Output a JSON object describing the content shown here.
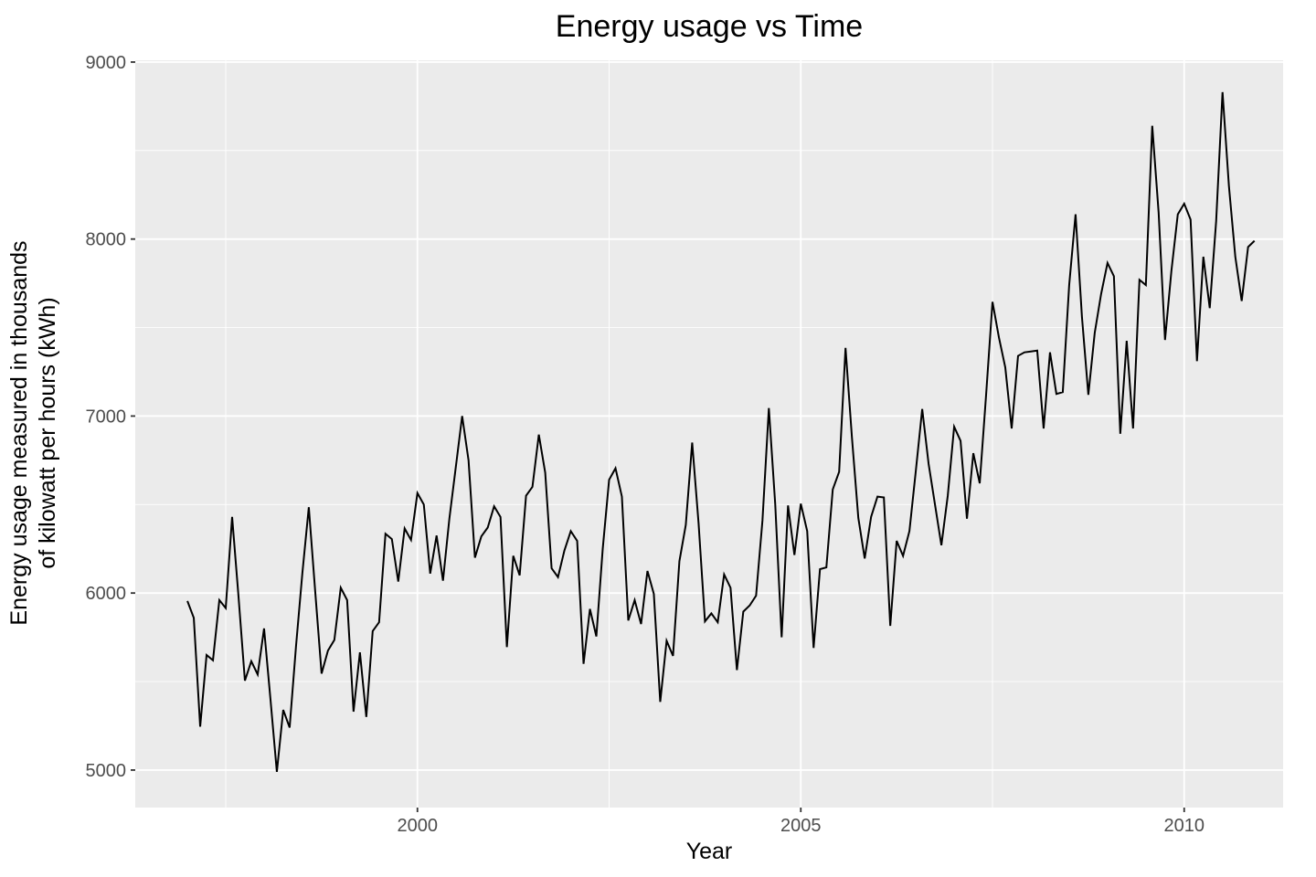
{
  "chart_data": {
    "type": "line",
    "title": "Energy usage vs Time",
    "xlabel": "Year",
    "ylabel_line1": "Energy usage measured in thousands",
    "ylabel_line2": "of kilowatt per hours (kWh)",
    "series_name": "energy-usage-monthly",
    "x_start_year": 1997,
    "x_step": "month",
    "x_ticks": [
      2000,
      2005,
      2010
    ],
    "x_tick_labels": [
      "2000",
      "2005",
      "2010"
    ],
    "x_minor_ticks": [
      1997.5,
      2002.5,
      2007.5
    ],
    "y_ticks": [
      5000,
      6000,
      7000,
      8000,
      9000
    ],
    "y_tick_labels": [
      "5000",
      "6000",
      "7000",
      "8000",
      "9000"
    ],
    "y_minor_ticks": [
      5500,
      6500,
      7500,
      8500
    ],
    "xlim": [
      1996.32,
      2011.29
    ],
    "ylim": [
      4788,
      9010
    ],
    "grid": true,
    "legend_position": "none",
    "values": [
      5955,
      5860,
      5245,
      5650,
      5620,
      5960,
      5915,
      6430,
      5980,
      5505,
      5615,
      5540,
      5800,
      5400,
      4990,
      5340,
      5240,
      5700,
      6115,
      6485,
      6010,
      5545,
      5675,
      5735,
      6030,
      5960,
      5330,
      5665,
      5300,
      5785,
      5835,
      6335,
      6305,
      6065,
      6365,
      6300,
      6565,
      6500,
      6110,
      6325,
      6070,
      6420,
      6710,
      7000,
      6750,
      6200,
      6320,
      6370,
      6490,
      6430,
      5695,
      6210,
      6100,
      6550,
      6600,
      6895,
      6680,
      6140,
      6090,
      6240,
      6350,
      6295,
      5600,
      5910,
      5755,
      6250,
      6640,
      6705,
      6545,
      5845,
      5960,
      5825,
      6125,
      5995,
      5385,
      5730,
      5645,
      6180,
      6385,
      6850,
      6395,
      5840,
      5885,
      5835,
      6105,
      6030,
      5565,
      5895,
      5930,
      5985,
      6410,
      7045,
      6500,
      5750,
      6495,
      6215,
      6505,
      6350,
      5690,
      6135,
      6145,
      6585,
      6685,
      7385,
      6880,
      6425,
      6195,
      6430,
      6545,
      6540,
      5815,
      6295,
      6210,
      6350,
      6690,
      7040,
      6730,
      6500,
      6270,
      6550,
      6940,
      6860,
      6420,
      6790,
      6620,
      7120,
      7645,
      7445,
      7275,
      6930,
      7340,
      7360,
      7365,
      7370,
      6930,
      7360,
      7125,
      7135,
      7740,
      8140,
      7560,
      7120,
      7470,
      7690,
      7865,
      7790,
      6900,
      7425,
      6930,
      7770,
      7740,
      8640,
      8150,
      7430,
      7820,
      8140,
      8200,
      8110,
      7310,
      7900,
      7610,
      8100,
      8830,
      8300,
      7900,
      7650,
      7955,
      7990
    ],
    "colors": {
      "panel_background": "#EBEBEB",
      "gridline": "#FFFFFF",
      "line": "#000000",
      "tick_text": "#4D4D4D",
      "tick_mark": "#333333",
      "title_text": "#000000"
    }
  }
}
